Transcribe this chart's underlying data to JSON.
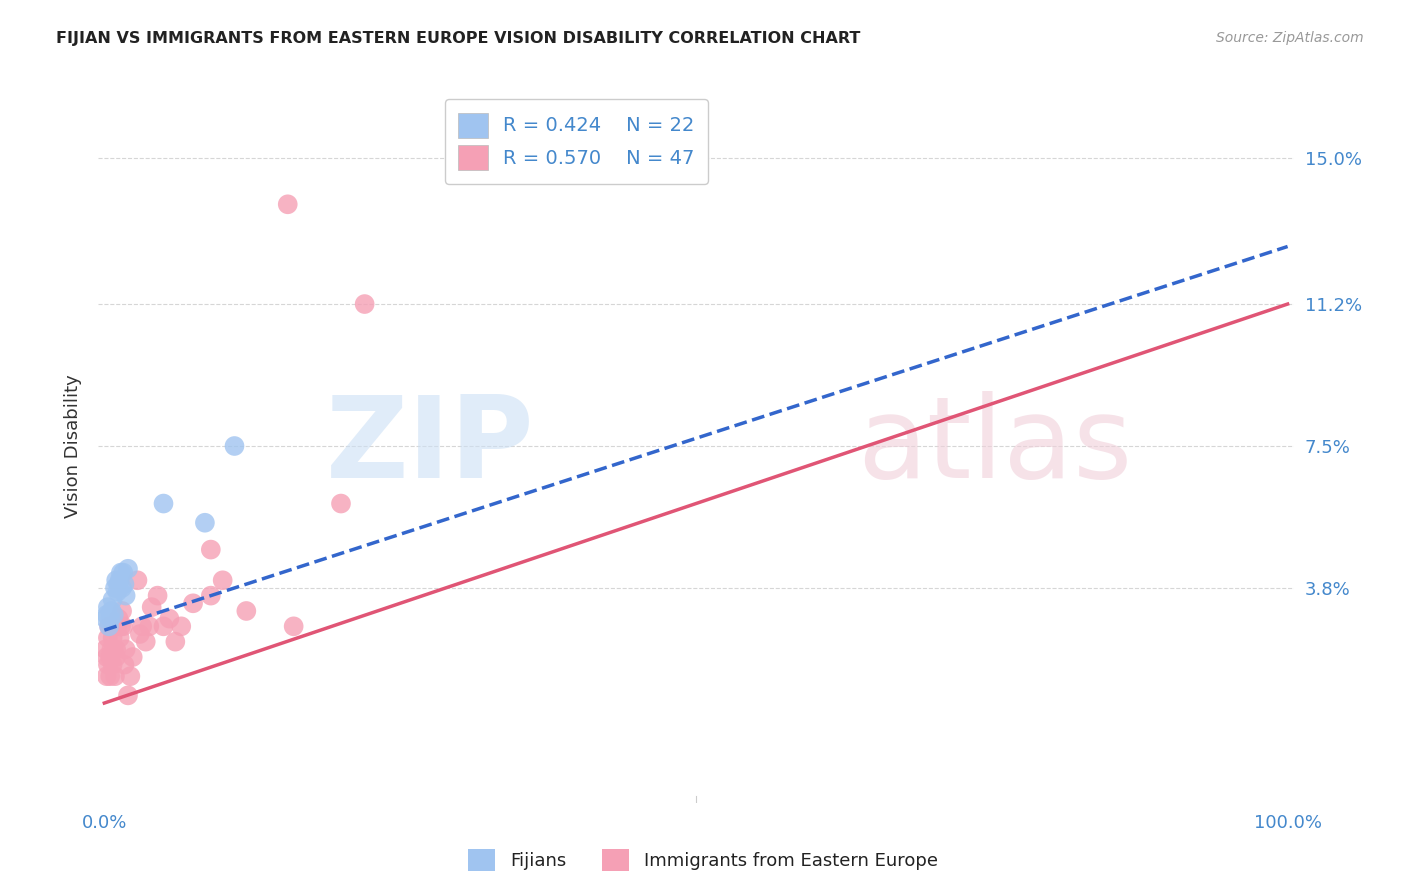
{
  "title": "FIJIAN VS IMMIGRANTS FROM EASTERN EUROPE VISION DISABILITY CORRELATION CHART",
  "source": "Source: ZipAtlas.com",
  "ylabel": "Vision Disability",
  "ytick_vals": [
    0.038,
    0.075,
    0.112,
    0.15
  ],
  "ytick_labels": [
    "3.8%",
    "7.5%",
    "11.2%",
    "15.0%"
  ],
  "xlim": [
    -0.005,
    1.005
  ],
  "ylim": [
    -0.018,
    0.168
  ],
  "legend_blue_R": "R = 0.424",
  "legend_blue_N": "N = 22",
  "legend_pink_R": "R = 0.570",
  "legend_pink_N": "N = 47",
  "legend_label_blue": "Fijians",
  "legend_label_pink": "Immigrants from Eastern Europe",
  "blue_color": "#a0c4f0",
  "pink_color": "#f5a0b5",
  "blue_line_color": "#3366cc",
  "pink_line_color": "#e05575",
  "blue_line_x0": 0.0,
  "blue_line_y0": 0.027,
  "blue_line_x1": 1.0,
  "blue_line_y1": 0.127,
  "pink_line_x0": 0.0,
  "pink_line_y0": 0.008,
  "pink_line_x1": 1.0,
  "pink_line_y1": 0.112,
  "blue_scatter": [
    [
      0.001,
      0.03
    ],
    [
      0.002,
      0.031
    ],
    [
      0.003,
      0.033
    ],
    [
      0.004,
      0.028
    ],
    [
      0.005,
      0.03
    ],
    [
      0.006,
      0.032
    ],
    [
      0.007,
      0.035
    ],
    [
      0.008,
      0.031
    ],
    [
      0.009,
      0.038
    ],
    [
      0.01,
      0.04
    ],
    [
      0.011,
      0.037
    ],
    [
      0.012,
      0.039
    ],
    [
      0.013,
      0.04
    ],
    [
      0.014,
      0.042
    ],
    [
      0.015,
      0.038
    ],
    [
      0.016,
      0.042
    ],
    [
      0.017,
      0.039
    ],
    [
      0.018,
      0.036
    ],
    [
      0.02,
      0.043
    ],
    [
      0.05,
      0.06
    ],
    [
      0.085,
      0.055
    ],
    [
      0.11,
      0.075
    ]
  ],
  "pink_scatter": [
    [
      0.001,
      0.022
    ],
    [
      0.002,
      0.02
    ],
    [
      0.002,
      0.015
    ],
    [
      0.003,
      0.025
    ],
    [
      0.003,
      0.018
    ],
    [
      0.004,
      0.028
    ],
    [
      0.005,
      0.02
    ],
    [
      0.005,
      0.015
    ],
    [
      0.006,
      0.022
    ],
    [
      0.007,
      0.025
    ],
    [
      0.007,
      0.018
    ],
    [
      0.008,
      0.022
    ],
    [
      0.009,
      0.028
    ],
    [
      0.009,
      0.015
    ],
    [
      0.01,
      0.02
    ],
    [
      0.01,
      0.022
    ],
    [
      0.011,
      0.028
    ],
    [
      0.012,
      0.03
    ],
    [
      0.013,
      0.025
    ],
    [
      0.014,
      0.028
    ],
    [
      0.015,
      0.032
    ],
    [
      0.016,
      0.028
    ],
    [
      0.017,
      0.018
    ],
    [
      0.018,
      0.022
    ],
    [
      0.02,
      0.01
    ],
    [
      0.022,
      0.015
    ],
    [
      0.024,
      0.02
    ],
    [
      0.028,
      0.04
    ],
    [
      0.03,
      0.026
    ],
    [
      0.032,
      0.028
    ],
    [
      0.035,
      0.024
    ],
    [
      0.038,
      0.028
    ],
    [
      0.04,
      0.033
    ],
    [
      0.045,
      0.036
    ],
    [
      0.05,
      0.028
    ],
    [
      0.055,
      0.03
    ],
    [
      0.06,
      0.024
    ],
    [
      0.065,
      0.028
    ],
    [
      0.075,
      0.034
    ],
    [
      0.09,
      0.036
    ],
    [
      0.1,
      0.04
    ],
    [
      0.12,
      0.032
    ],
    [
      0.16,
      0.028
    ],
    [
      0.22,
      0.112
    ],
    [
      0.09,
      0.048
    ],
    [
      0.2,
      0.06
    ],
    [
      0.155,
      0.138
    ]
  ],
  "xtick_left": "0.0%",
  "xtick_right": "100.0%",
  "grid_color": "#cccccc",
  "axis_label_color": "#4488cc",
  "title_color": "#222222",
  "source_color": "#999999"
}
